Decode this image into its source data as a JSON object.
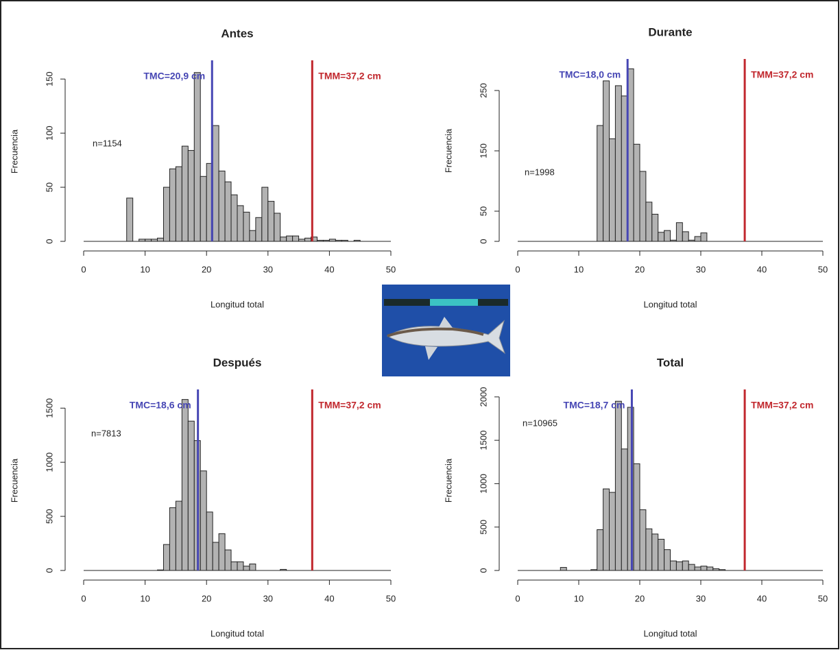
{
  "chart_data": [
    {
      "type": "histogram",
      "title": "Antes",
      "xlabel": "Longitud total",
      "ylabel": "Frecuencia",
      "bins": [
        7,
        8,
        9,
        10,
        11,
        12,
        13,
        14,
        15,
        16,
        17,
        18,
        19,
        20,
        21,
        22,
        23,
        24,
        25,
        26,
        27,
        28,
        29,
        30,
        31,
        32,
        33,
        34,
        35,
        36,
        37,
        38,
        39,
        40,
        41,
        42,
        43,
        44,
        45
      ],
      "values": [
        40,
        0,
        2,
        2,
        2,
        3,
        50,
        67,
        69,
        88,
        84,
        156,
        60,
        72,
        107,
        65,
        55,
        43,
        33,
        27,
        10,
        22,
        50,
        37,
        26,
        4,
        5,
        5,
        2,
        3,
        4,
        1,
        1,
        2,
        1,
        1,
        0,
        1
      ],
      "color": "#b3b3b3",
      "xlim": [
        0,
        50
      ],
      "ylim": [
        0,
        166
      ],
      "xticks": [
        0,
        10,
        20,
        30,
        40,
        50
      ],
      "yticks": [
        0,
        50,
        100,
        150
      ],
      "lines": [
        {
          "value": 20.9,
          "label": "TMC=20,9 cm",
          "color": "#4646b4"
        },
        {
          "value": 37.2,
          "label": "TMM=37,2 cm",
          "color": "#c1272d"
        }
      ],
      "annotation": "n=1154"
    },
    {
      "type": "histogram",
      "title": "Durante",
      "xlabel": "Longitud total",
      "ylabel": "Frecuencia",
      "bins": [
        13,
        14,
        15,
        16,
        17,
        18,
        19,
        20,
        21,
        22,
        23,
        24,
        25,
        26,
        27,
        28,
        29,
        30,
        31
      ],
      "values": [
        192,
        266,
        170,
        258,
        241,
        286,
        161,
        116,
        65,
        45,
        15,
        18,
        2,
        31,
        16,
        2,
        8,
        14
      ],
      "color": "#b3b3b3",
      "xlim": [
        0,
        50
      ],
      "ylim": [
        0,
        300
      ],
      "xticks": [
        0,
        10,
        20,
        30,
        40,
        50
      ],
      "yticks": [
        0,
        50,
        150,
        250
      ],
      "lines": [
        {
          "value": 18.0,
          "label": "TMC=18,0 cm",
          "color": "#4646b4"
        },
        {
          "value": 37.2,
          "label": "TMM=37,2 cm",
          "color": "#c1272d"
        }
      ],
      "annotation": "n=1998"
    },
    {
      "type": "histogram",
      "title": "Después",
      "xlabel": "Longitud total",
      "ylabel": "Frecuencia",
      "bins": [
        12,
        13,
        14,
        15,
        16,
        17,
        18,
        19,
        20,
        21,
        22,
        23,
        24,
        25,
        26,
        27,
        28,
        29,
        30,
        31,
        32,
        33
      ],
      "values": [
        5,
        240,
        580,
        640,
        1580,
        1380,
        1200,
        920,
        540,
        260,
        340,
        190,
        80,
        80,
        40,
        60,
        0,
        0,
        0,
        0,
        10
      ],
      "color": "#b3b3b3",
      "xlim": [
        0,
        50
      ],
      "ylim": [
        0,
        1660
      ],
      "xticks": [
        0,
        10,
        20,
        30,
        40,
        50
      ],
      "yticks": [
        0,
        500,
        1000,
        1500
      ],
      "lines": [
        {
          "value": 18.6,
          "label": "TMC=18,6 cm",
          "color": "#4646b4"
        },
        {
          "value": 37.2,
          "label": "TMM=37,2 cm",
          "color": "#c1272d"
        }
      ],
      "annotation": "n=7813"
    },
    {
      "type": "histogram",
      "title": "Total",
      "xlabel": "Longitud total",
      "ylabel": "Frecuencia",
      "bins": [
        7,
        8,
        9,
        10,
        11,
        12,
        13,
        14,
        15,
        16,
        17,
        18,
        19,
        20,
        21,
        22,
        23,
        24,
        25,
        26,
        27,
        28,
        29,
        30,
        31,
        32,
        33,
        34
      ],
      "values": [
        35,
        0,
        0,
        0,
        0,
        10,
        470,
        940,
        900,
        1950,
        1400,
        1880,
        1230,
        700,
        480,
        420,
        360,
        240,
        110,
        100,
        110,
        70,
        40,
        50,
        40,
        20,
        10
      ],
      "color": "#b3b3b3",
      "xlim": [
        0,
        50
      ],
      "ylim": [
        0,
        2070
      ],
      "xticks": [
        0,
        10,
        20,
        30,
        40,
        50
      ],
      "yticks": [
        0,
        500,
        1000,
        1500,
        2000
      ],
      "lines": [
        {
          "value": 18.7,
          "label": "TMC=18,7 cm",
          "color": "#4646b4"
        },
        {
          "value": 37.2,
          "label": "TMM=37,2 cm",
          "color": "#c1272d"
        }
      ],
      "annotation": "n=10965"
    }
  ]
}
